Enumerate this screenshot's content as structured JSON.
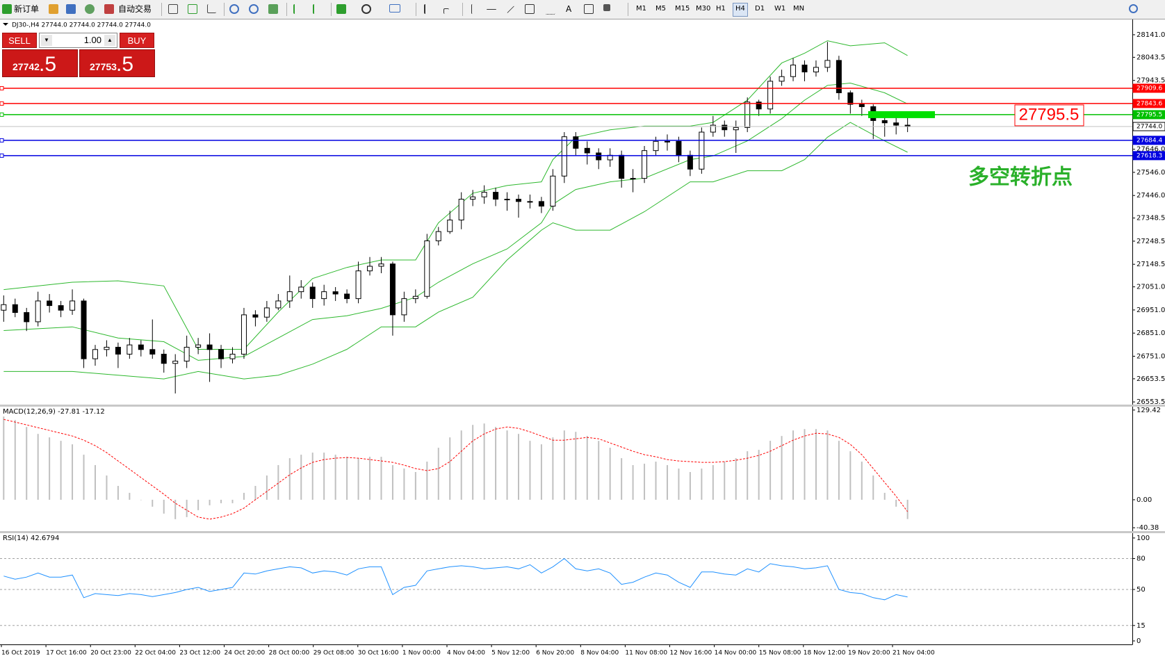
{
  "toolbar": {
    "new_order": "新订单",
    "auto_trading": "自动交易",
    "timeframes": [
      "M1",
      "M5",
      "M15",
      "M30",
      "H1",
      "H4",
      "D1",
      "W1",
      "MN"
    ]
  },
  "trade_panel": {
    "sell": "SELL",
    "volume": "1.00",
    "buy": "BUY",
    "bid_main": "27742",
    "bid_pips": ".5",
    "ask_main": "27753",
    "ask_pips": ".5"
  },
  "chart_header": "DJ30-,H4 27744.0 27744.0 27744.0 27744.0",
  "time_axis": [
    "16 Oct 2019",
    "17 Oct 16:00",
    "20 Oct 23:00",
    "22 Oct 04:00",
    "23 Oct 12:00",
    "24 Oct 20:00",
    "28 Oct 00:00",
    "29 Oct 08:00",
    "30 Oct 16:00",
    "1 Nov 00:00",
    "4 Nov 04:00",
    "5 Nov 12:00",
    "6 Nov 20:00",
    "8 Nov 04:00",
    "11 Nov 08:00",
    "12 Nov 16:00",
    "14 Nov 00:00",
    "15 Nov 08:00",
    "18 Nov 12:00",
    "19 Nov 20:00",
    "21 Nov 04:00"
  ],
  "chart_data": [
    {
      "type": "candlestick",
      "ylim": [
        26545,
        28201
      ],
      "yticks": [
        {
          "value": 28141,
          "label": "28141.0"
        },
        28043.5,
        27943.5,
        {
          "value": 27646,
          "label": "27646.0"
        },
        {
          "value": 27546,
          "label": "27546.0"
        },
        {
          "value": 27446,
          "label": "27446.0"
        },
        27348.5,
        27248.5,
        27148.5,
        {
          "value": 27051,
          "label": "27051.0"
        },
        {
          "value": 26951,
          "label": "26951.0"
        },
        {
          "value": 26851,
          "label": "26851.0"
        },
        {
          "value": 26751,
          "label": "26751.0"
        },
        26653.5,
        26553.5
      ],
      "open": [
        26950,
        26974,
        26940,
        26900,
        26990,
        26970,
        26950,
        26990,
        26740,
        26780,
        26790,
        26760,
        26800,
        26780,
        26760,
        26720,
        26730,
        26790,
        26800,
        26780,
        26740,
        26760,
        26930,
        26920,
        26960,
        26990,
        27030,
        27050,
        27000,
        27030,
        27020,
        27000,
        27120,
        27140,
        27150,
        26930,
        27000,
        27010,
        27250,
        27290,
        27340,
        27430,
        27440,
        27460,
        27430,
        27430,
        27420,
        27420,
        27400,
        27530,
        27700,
        27650,
        27630,
        27600,
        27620,
        27520,
        27520,
        27640,
        27680,
        27680,
        27620,
        27560,
        27720,
        27750,
        27730,
        27740,
        27850,
        27820,
        27940,
        27960,
        28010,
        27980,
        28000,
        28030,
        27890,
        27840,
        27830,
        27770,
        27760,
        27750
      ],
      "high": [
        27014,
        27000,
        26960,
        27030,
        27020,
        26990,
        27040,
        27000,
        26800,
        26820,
        26810,
        26830,
        26820,
        26910,
        26780,
        26760,
        26840,
        26830,
        26850,
        26800,
        26790,
        26960,
        26950,
        26990,
        27020,
        27100,
        27080,
        27070,
        27060,
        27050,
        27040,
        27160,
        27180,
        27180,
        27160,
        27030,
        27040,
        27280,
        27310,
        27380,
        27460,
        27470,
        27490,
        27480,
        27460,
        27450,
        27450,
        27440,
        27560,
        27720,
        27720,
        27680,
        27650,
        27650,
        27640,
        27560,
        27660,
        27700,
        27710,
        27700,
        27640,
        27740,
        27790,
        27770,
        27770,
        27870,
        27860,
        27960,
        27990,
        28040,
        28030,
        28030,
        28110,
        28050,
        27900,
        27860,
        27840,
        27810,
        27800,
        27790
      ],
      "low": [
        26900,
        26920,
        26860,
        26880,
        26940,
        26920,
        26930,
        26700,
        26710,
        26750,
        26700,
        26740,
        26750,
        26740,
        26680,
        26590,
        26700,
        26760,
        26640,
        26700,
        26720,
        26740,
        26880,
        26900,
        26950,
        26960,
        27000,
        26960,
        26970,
        26990,
        26980,
        26980,
        27100,
        27110,
        26840,
        26900,
        26980,
        27000,
        27230,
        27280,
        27300,
        27400,
        27410,
        27400,
        27380,
        27350,
        27390,
        27370,
        27380,
        27500,
        27620,
        27580,
        27560,
        27570,
        27480,
        27460,
        27500,
        27620,
        27640,
        27590,
        27530,
        27540,
        27700,
        27700,
        27630,
        27720,
        27790,
        27800,
        27920,
        27940,
        27940,
        27960,
        27980,
        27860,
        27800,
        27790,
        27690,
        27700,
        27710,
        27720
      ],
      "close": [
        26974,
        26940,
        26900,
        26990,
        26970,
        26950,
        26990,
        26740,
        26780,
        26790,
        26760,
        26800,
        26780,
        26760,
        26720,
        26730,
        26790,
        26800,
        26780,
        26740,
        26760,
        26930,
        26920,
        26960,
        26990,
        27030,
        27050,
        27000,
        27030,
        27020,
        27000,
        27120,
        27140,
        27150,
        26930,
        27000,
        27010,
        27250,
        27290,
        27340,
        27430,
        27440,
        27460,
        27430,
        27430,
        27420,
        27420,
        27400,
        27530,
        27700,
        27650,
        27630,
        27600,
        27620,
        27520,
        27520,
        27640,
        27680,
        27680,
        27620,
        27560,
        27720,
        27750,
        27730,
        27740,
        27850,
        27820,
        27940,
        27960,
        28010,
        27980,
        28000,
        28030,
        27890,
        27840,
        27830,
        27770,
        27760,
        27750,
        27744
      ],
      "bull_color": "#ffffff",
      "bear_color": "#000000",
      "bands": {
        "color": "#2db82d",
        "x": [
          0,
          6,
          10,
          14,
          17,
          21,
          24,
          27,
          30,
          33,
          36,
          38,
          41,
          44,
          47,
          48,
          50,
          53,
          56,
          60,
          62,
          65,
          68,
          70,
          72,
          74,
          77,
          79
        ],
        "upper": [
          27039,
          27071,
          27077,
          27055,
          26781,
          26781,
          26942,
          27087,
          27135,
          27167,
          27167,
          27328,
          27456,
          27489,
          27505,
          27601,
          27698,
          27730,
          27746,
          27746,
          27762,
          27858,
          28019,
          28061,
          28115,
          28093,
          28106,
          28051
        ],
        "middle": [
          26862,
          26878,
          26830,
          26814,
          26733,
          26750,
          26830,
          26910,
          26926,
          26958,
          27006,
          27071,
          27151,
          27215,
          27328,
          27408,
          27472,
          27505,
          27521,
          27601,
          27617,
          27682,
          27778,
          27858,
          27922,
          27932,
          27890,
          27842
        ],
        "lower": [
          26685,
          26685,
          26669,
          26653,
          26685,
          26653,
          26669,
          26717,
          26781,
          26878,
          26878,
          26942,
          27006,
          27167,
          27296,
          27328,
          27296,
          27296,
          27376,
          27505,
          27505,
          27553,
          27553,
          27601,
          27698,
          27762,
          27682,
          27633
        ]
      },
      "levels": [
        {
          "value": 27909.6,
          "color": "#ff0000"
        },
        {
          "value": 27843.6,
          "color": "#ff0000"
        },
        {
          "value": 27795.5,
          "color": "#00c000"
        },
        {
          "value": 27744,
          "label": "27744.0",
          "color": "#c0c0c0"
        },
        {
          "value": 27684.4,
          "color": "#0000e0"
        },
        {
          "value": 27618.3,
          "color": "#0000e0"
        }
      ],
      "price_annotation": "27795.5",
      "annotation": "多空转折点"
    },
    {
      "type": "bar",
      "title": "MACD(12,26,9) -27.81 -17.12",
      "ylim": [
        -45.2,
        133.3
      ],
      "yticks": [
        129.42,
        {
          "value": 0,
          "label": "0.00"
        },
        -40.38
      ],
      "color": "#c0c0c0",
      "values": [
        120,
        115,
        105,
        95,
        90,
        85,
        80,
        65,
        50,
        35,
        20,
        10,
        0,
        -10,
        -20,
        -28,
        -25,
        -15,
        -8,
        -5,
        -5,
        10,
        20,
        35,
        50,
        60,
        65,
        68,
        68,
        65,
        62,
        60,
        62,
        62,
        50,
        45,
        40,
        55,
        75,
        90,
        100,
        108,
        110,
        105,
        100,
        95,
        85,
        80,
        90,
        100,
        98,
        92,
        85,
        75,
        60,
        50,
        52,
        55,
        50,
        45,
        40,
        45,
        50,
        55,
        60,
        70,
        72,
        85,
        92,
        100,
        102,
        102,
        100,
        85,
        70,
        55,
        35,
        10,
        -10,
        -27.81
      ],
      "signal_color": "#ff0000",
      "signal_values": [
        116,
        112,
        108,
        104,
        100,
        96,
        92,
        86,
        78,
        68,
        56,
        44,
        32,
        20,
        8,
        -5,
        -15,
        -25,
        -28,
        -25,
        -20,
        -12,
        0,
        12,
        24,
        36,
        46,
        54,
        58,
        60,
        61,
        60,
        58,
        56,
        54,
        50,
        45,
        42,
        45,
        55,
        70,
        85,
        95,
        102,
        105,
        103,
        98,
        92,
        86,
        86,
        88,
        90,
        88,
        82,
        76,
        70,
        65,
        62,
        58,
        56,
        55,
        54,
        54,
        55,
        57,
        60,
        64,
        70,
        78,
        86,
        92,
        96,
        95,
        90,
        80,
        65,
        45,
        25,
        5,
        -17.12
      ]
    },
    {
      "type": "line",
      "title": "RSI(14) 42.6794",
      "ylim": [
        -2.7,
        104
      ],
      "yticks": [
        100,
        80,
        50,
        15,
        0
      ],
      "levels": [
        80,
        50,
        15
      ],
      "color": "#1e90ff",
      "values": [
        63,
        60,
        62,
        66,
        62,
        62,
        64,
        42,
        46,
        45,
        44,
        46,
        45,
        43,
        45,
        47,
        50,
        52,
        48,
        50,
        52,
        66,
        65,
        68,
        70,
        72,
        71,
        66,
        68,
        67,
        64,
        70,
        72,
        72,
        45,
        52,
        54,
        68,
        70,
        72,
        73,
        72,
        70,
        71,
        72,
        70,
        74,
        66,
        72,
        80,
        70,
        68,
        70,
        66,
        55,
        57,
        62,
        66,
        64,
        57,
        52,
        67,
        67,
        65,
        64,
        70,
        67,
        75,
        73,
        72,
        70,
        71,
        73,
        50,
        47,
        46,
        42,
        40,
        45,
        42.6794
      ]
    }
  ]
}
